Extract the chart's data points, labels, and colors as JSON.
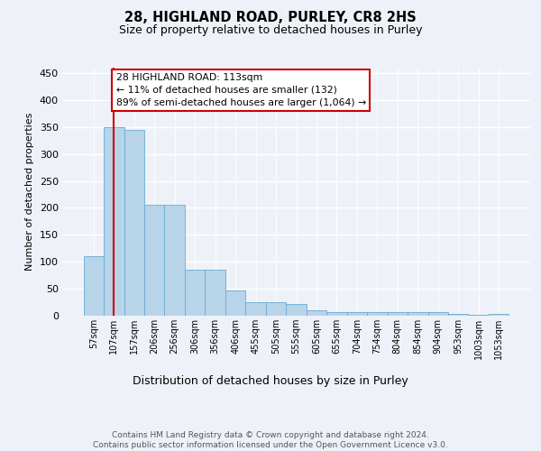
{
  "title1": "28, HIGHLAND ROAD, PURLEY, CR8 2HS",
  "title2": "Size of property relative to detached houses in Purley",
  "xlabel": "Distribution of detached houses by size in Purley",
  "ylabel": "Number of detached properties",
  "bar_labels": [
    "57sqm",
    "107sqm",
    "157sqm",
    "206sqm",
    "256sqm",
    "306sqm",
    "356sqm",
    "406sqm",
    "455sqm",
    "505sqm",
    "555sqm",
    "605sqm",
    "655sqm",
    "704sqm",
    "754sqm",
    "804sqm",
    "854sqm",
    "904sqm",
    "953sqm",
    "1003sqm",
    "1053sqm"
  ],
  "bar_values": [
    110,
    350,
    345,
    205,
    205,
    85,
    85,
    47,
    25,
    25,
    21,
    10,
    7,
    6,
    6,
    6,
    7,
    6,
    3,
    1,
    4
  ],
  "bar_color": "#b8d4e8",
  "bar_edge_color": "#6aaad4",
  "vline_x": 1.0,
  "vline_color": "#cc0000",
  "annotation_text": "28 HIGHLAND ROAD: 113sqm\n← 11% of detached houses are smaller (132)\n89% of semi-detached houses are larger (1,064) →",
  "annotation_box_color": "#cc0000",
  "ylim": [
    0,
    460
  ],
  "yticks": [
    0,
    50,
    100,
    150,
    200,
    250,
    300,
    350,
    400,
    450
  ],
  "footer": "Contains HM Land Registry data © Crown copyright and database right 2024.\nContains public sector information licensed under the Open Government Licence v3.0.",
  "bg_color": "#eef2f8",
  "plot_bg": "#eef2f8",
  "grid_color": "#ffffff"
}
